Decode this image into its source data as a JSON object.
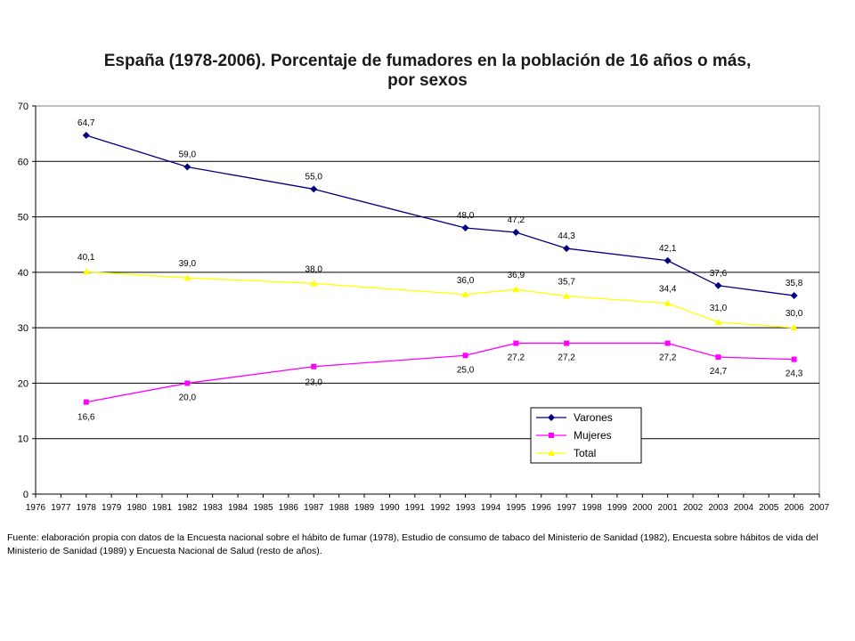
{
  "chart_data": {
    "type": "line",
    "title_line1": "España (1978-2006). Porcentaje de fumadores en la población de 16 años o más,",
    "title_line2": "por sexos",
    "xlabel": "",
    "ylabel": "",
    "ylim": [
      0,
      70
    ],
    "yticks": [
      0,
      10,
      20,
      30,
      40,
      50,
      60,
      70
    ],
    "xlim": [
      1976,
      2007
    ],
    "x_tick_labels": [
      "1976",
      "1977",
      "1978",
      "1979",
      "1980",
      "1981",
      "1982",
      "1983",
      "1984",
      "1985",
      "1986",
      "1987",
      "1988",
      "1989",
      "1990",
      "1991",
      "1992",
      "1993",
      "1994",
      "1995",
      "1996",
      "1997",
      "1998",
      "1999",
      "2000",
      "2001",
      "2002",
      "2003",
      "2004",
      "2005",
      "2006",
      "2007"
    ],
    "x": [
      1978,
      1982,
      1987,
      1993,
      1995,
      1997,
      2001,
      2003,
      2006
    ],
    "grid": "horizontal",
    "legend_position": "bottom-right",
    "series": [
      {
        "name": "Varones",
        "color": "#000080",
        "marker": "diamond",
        "values": [
          64.7,
          59.0,
          55.0,
          48.0,
          47.2,
          44.3,
          42.1,
          37.6,
          35.8
        ],
        "labels": [
          "64,7",
          "59,0",
          "55,0",
          "48,0",
          "47,2",
          "44,3",
          "42,1",
          "37,6",
          "35,8"
        ]
      },
      {
        "name": "Mujeres",
        "color": "#ff00ff",
        "marker": "square",
        "values": [
          16.6,
          20.0,
          23.0,
          25.0,
          27.2,
          27.2,
          27.2,
          24.7,
          24.3
        ],
        "labels": [
          "16,6",
          "20,0",
          "23,0",
          "25,0",
          "27,2",
          "27,2",
          "27,2",
          "24,7",
          "24,3"
        ]
      },
      {
        "name": "Total",
        "color": "#ffff00",
        "marker": "triangle",
        "values": [
          40.1,
          39.0,
          38.0,
          36.0,
          36.9,
          35.7,
          34.4,
          31.0,
          30.0
        ],
        "labels": [
          "40,1",
          "39,0",
          "38,0",
          "36,0",
          "36,9",
          "35,7",
          "34,4",
          "31,0",
          "30,0"
        ]
      }
    ]
  },
  "source_note": "Fuente: elaboración propia con datos de la Encuesta nacional sobre el hábito de fumar (1978), Estudio de consumo de tabaco del Ministerio de Sanidad (1982), Encuesta sobre hábitos de vida del Ministerio de Sanidad (1989) y Encuesta Nacional de Salud (resto de años)."
}
